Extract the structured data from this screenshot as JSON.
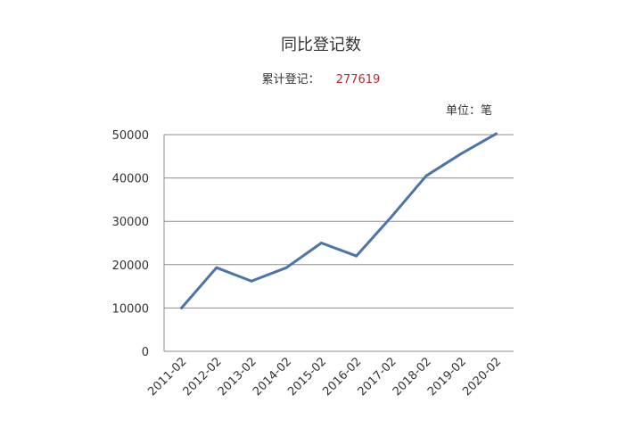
{
  "chart_data": {
    "type": "line",
    "title": "同比登记数",
    "summary_label": "累计登记：",
    "summary_value": "277619",
    "unit_label": "单位：笔",
    "categories": [
      "2011-02",
      "2012-02",
      "2013-02",
      "2014-02",
      "2015-02",
      "2016-02",
      "2017-02",
      "2018-02",
      "2019-02",
      "2020-02"
    ],
    "series": [
      {
        "values": [
          10000,
          19300,
          16200,
          19300,
          25000,
          22000,
          31000,
          40500,
          45600,
          50200
        ]
      }
    ],
    "ylim": [
      0,
      50000
    ],
    "yticks": [
      0,
      10000,
      20000,
      30000,
      40000,
      50000
    ],
    "ytick_labels": [
      "0",
      "10000",
      "20000",
      "30000",
      "40000",
      "50000"
    ],
    "grid": true,
    "line_color": "#4a74aa",
    "grid_color": "#8c8c8c"
  }
}
